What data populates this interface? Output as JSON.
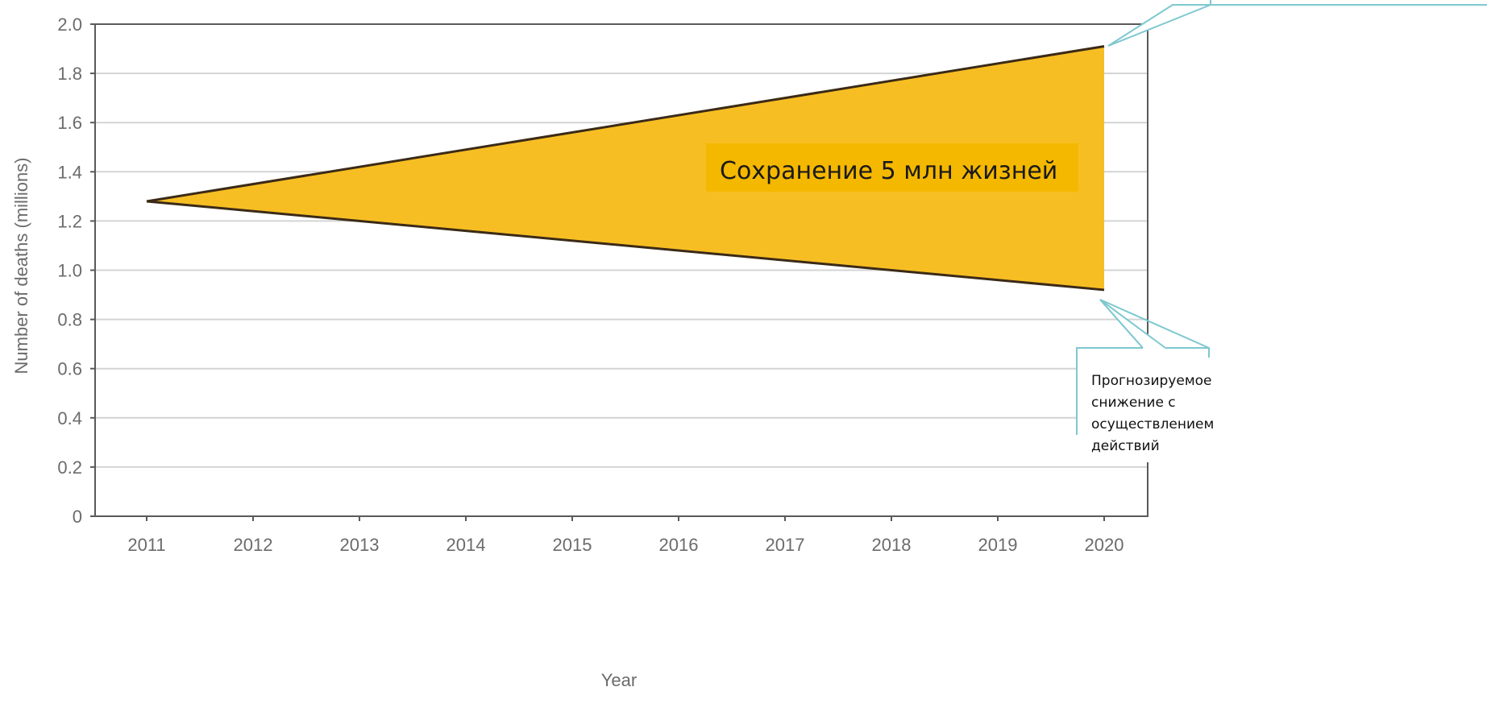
{
  "chart_data": {
    "type": "area",
    "xlabel": "Year",
    "ylabel": "Number of deaths (millions)",
    "x": [
      2011,
      2012,
      2013,
      2014,
      2015,
      2016,
      2017,
      2018,
      2019,
      2020
    ],
    "xlim": [
      2011,
      2020
    ],
    "ylim": [
      0,
      2.0
    ],
    "yticks": [
      "0",
      "0.2",
      "0.4",
      "0.6",
      "0.8",
      "1.0",
      "1.2",
      "1.4",
      "1.6",
      "1.8",
      "2.0"
    ],
    "grid": true,
    "series": [
      {
        "values_at_ends": [
          1.28,
          1.91
        ]
      },
      {
        "values_at_ends": [
          1.28,
          0.92
        ]
      }
    ],
    "annotations": {
      "center": "Сохранение 5 млн жизней",
      "callout_bottom": [
        "Прогнозируемое",
        "снижение с",
        "осуществлением",
        "действий"
      ]
    },
    "colors": {
      "fill": "#F7BE23",
      "line": "#3b2a17",
      "grid": "#d4d4d4",
      "axis": "#5a5a5a",
      "callout_border": "#7ec8cf",
      "center_box": "#F5B800"
    }
  }
}
